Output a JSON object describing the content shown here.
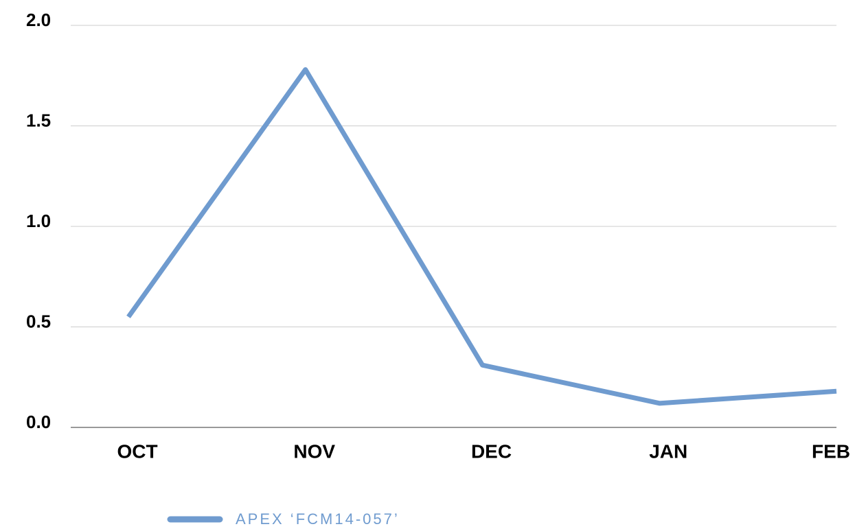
{
  "chart_data": {
    "type": "line",
    "categories": [
      "OCT",
      "NOV",
      "DEC",
      "JAN",
      "FEB"
    ],
    "series": [
      {
        "name": "APEX ‘FCM14-057’",
        "color": "#6f9bcf",
        "values": [
          0.55,
          1.78,
          0.31,
          0.12,
          0.18
        ]
      }
    ],
    "ylim": [
      0,
      2
    ],
    "yticks": [
      {
        "value": 0,
        "label": "0.0"
      },
      {
        "value": 0.5,
        "label": "0.5"
      },
      {
        "value": 1,
        "label": "1.0"
      },
      {
        "value": 1.5,
        "label": "1.5"
      },
      {
        "value": 2,
        "label": "2.0"
      }
    ],
    "grid": true,
    "legend": "bottom"
  }
}
